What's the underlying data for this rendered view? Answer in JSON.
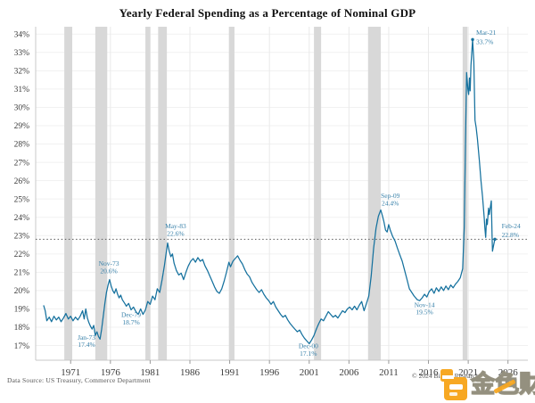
{
  "title": "Yearly Federal Spending as a Percentage of Nominal GDP",
  "footer": {
    "source": "Data Source: US Treasury, Commerce Department",
    "copyright": "© 2024 Bianco Research"
  },
  "watermark": {
    "text": "金色财经"
  },
  "colors": {
    "line": "#15719e",
    "annotation": "#3a82aa",
    "band": "#d8d8d8",
    "ref_line": "#5a5a5a",
    "h_grid": "#f1f1f1",
    "v_grid": "#e9e9e9",
    "axis_text": "#3a3a3a",
    "spine": "#c8c8c8",
    "tick": "#999999",
    "watermark_orange": "#f7a823"
  },
  "chart_data": {
    "type": "line",
    "title": "Yearly Federal Spending as a Percentage of Nominal GDP",
    "xlabel": "",
    "ylabel": "",
    "xlim": [
      1966.6,
      2028.5
    ],
    "ylim": [
      16.2,
      34.4
    ],
    "x_ticks": [
      1971,
      1976,
      1981,
      1986,
      1991,
      1996,
      2001,
      2006,
      2011,
      2016,
      2021,
      2026
    ],
    "y_ticks": [
      34,
      33,
      32,
      31,
      30,
      29,
      28,
      27,
      26,
      25,
      24,
      23,
      22,
      21,
      20,
      19,
      18,
      17
    ],
    "y_tick_suffix": "%",
    "grid": true,
    "legend": "none",
    "ref_line": 22.8,
    "recession_bands": [
      [
        1970.2,
        1971.2
      ],
      [
        1974.1,
        1975.6
      ],
      [
        1980.4,
        1981.0
      ],
      [
        1982.0,
        1983.1
      ],
      [
        1990.9,
        1991.6
      ],
      [
        2001.6,
        2002.5
      ],
      [
        2008.4,
        2010.0
      ],
      [
        2020.3,
        2020.9
      ]
    ],
    "series": [
      {
        "name": "Federal Spending as % of Nominal GDP",
        "points": [
          [
            1967.6,
            19.2
          ],
          [
            1967.8,
            18.9
          ],
          [
            1968.0,
            18.35
          ],
          [
            1968.3,
            18.55
          ],
          [
            1968.6,
            18.3
          ],
          [
            1968.9,
            18.6
          ],
          [
            1969.2,
            18.4
          ],
          [
            1969.5,
            18.55
          ],
          [
            1969.8,
            18.3
          ],
          [
            1970.1,
            18.5
          ],
          [
            1970.4,
            18.75
          ],
          [
            1970.7,
            18.45
          ],
          [
            1971.0,
            18.6
          ],
          [
            1971.3,
            18.35
          ],
          [
            1971.6,
            18.55
          ],
          [
            1971.9,
            18.4
          ],
          [
            1972.2,
            18.6
          ],
          [
            1972.5,
            18.9
          ],
          [
            1972.7,
            18.45
          ],
          [
            1972.9,
            19.0
          ],
          [
            1973.1,
            18.5
          ],
          [
            1973.3,
            18.25
          ],
          [
            1973.5,
            18.05
          ],
          [
            1973.7,
            17.9
          ],
          [
            1973.9,
            18.1
          ],
          [
            1974.1,
            17.55
          ],
          [
            1974.3,
            17.75
          ],
          [
            1974.5,
            17.5
          ],
          [
            1974.7,
            17.35
          ],
          [
            1974.9,
            17.9
          ],
          [
            1975.1,
            18.6
          ],
          [
            1975.3,
            19.3
          ],
          [
            1975.5,
            19.9
          ],
          [
            1975.7,
            20.3
          ],
          [
            1975.9,
            20.6
          ],
          [
            1976.1,
            20.25
          ],
          [
            1976.3,
            20.0
          ],
          [
            1976.5,
            19.85
          ],
          [
            1976.7,
            20.1
          ],
          [
            1976.9,
            19.8
          ],
          [
            1977.1,
            19.6
          ],
          [
            1977.3,
            19.75
          ],
          [
            1977.5,
            19.5
          ],
          [
            1977.8,
            19.3
          ],
          [
            1978.0,
            19.15
          ],
          [
            1978.3,
            19.3
          ],
          [
            1978.6,
            18.95
          ],
          [
            1978.9,
            19.1
          ],
          [
            1979.2,
            18.85
          ],
          [
            1979.5,
            18.7
          ],
          [
            1979.8,
            19.0
          ],
          [
            1980.1,
            18.7
          ],
          [
            1980.4,
            18.95
          ],
          [
            1980.7,
            19.4
          ],
          [
            1981.0,
            19.25
          ],
          [
            1981.3,
            19.7
          ],
          [
            1981.6,
            19.5
          ],
          [
            1981.9,
            20.1
          ],
          [
            1982.2,
            19.9
          ],
          [
            1982.5,
            20.6
          ],
          [
            1982.8,
            21.4
          ],
          [
            1983.0,
            22.0
          ],
          [
            1983.2,
            22.6
          ],
          [
            1983.4,
            22.15
          ],
          [
            1983.6,
            21.85
          ],
          [
            1983.8,
            22.0
          ],
          [
            1984.0,
            21.5
          ],
          [
            1984.3,
            21.1
          ],
          [
            1984.6,
            20.85
          ],
          [
            1984.9,
            20.95
          ],
          [
            1985.2,
            20.6
          ],
          [
            1985.5,
            21.0
          ],
          [
            1985.8,
            21.35
          ],
          [
            1986.1,
            21.6
          ],
          [
            1986.4,
            21.75
          ],
          [
            1986.7,
            21.55
          ],
          [
            1987.0,
            21.8
          ],
          [
            1987.3,
            21.6
          ],
          [
            1987.6,
            21.7
          ],
          [
            1987.9,
            21.35
          ],
          [
            1988.2,
            21.1
          ],
          [
            1988.5,
            20.8
          ],
          [
            1988.8,
            20.5
          ],
          [
            1989.1,
            20.2
          ],
          [
            1989.4,
            19.95
          ],
          [
            1989.7,
            19.85
          ],
          [
            1990.0,
            20.1
          ],
          [
            1990.3,
            20.5
          ],
          [
            1990.6,
            21.0
          ],
          [
            1990.9,
            21.55
          ],
          [
            1991.1,
            21.3
          ],
          [
            1991.4,
            21.6
          ],
          [
            1991.7,
            21.75
          ],
          [
            1992.0,
            21.9
          ],
          [
            1992.3,
            21.65
          ],
          [
            1992.6,
            21.45
          ],
          [
            1992.9,
            21.15
          ],
          [
            1993.2,
            20.9
          ],
          [
            1993.5,
            20.75
          ],
          [
            1993.8,
            20.45
          ],
          [
            1994.1,
            20.25
          ],
          [
            1994.4,
            20.05
          ],
          [
            1994.7,
            19.9
          ],
          [
            1995.0,
            20.05
          ],
          [
            1995.3,
            19.8
          ],
          [
            1995.6,
            19.6
          ],
          [
            1995.9,
            19.45
          ],
          [
            1996.2,
            19.25
          ],
          [
            1996.5,
            19.4
          ],
          [
            1996.8,
            19.1
          ],
          [
            1997.1,
            18.9
          ],
          [
            1997.4,
            18.7
          ],
          [
            1997.7,
            18.55
          ],
          [
            1998.0,
            18.65
          ],
          [
            1998.3,
            18.4
          ],
          [
            1998.6,
            18.2
          ],
          [
            1998.9,
            18.05
          ],
          [
            1999.2,
            17.9
          ],
          [
            1999.5,
            17.75
          ],
          [
            1999.8,
            17.85
          ],
          [
            2000.1,
            17.6
          ],
          [
            2000.4,
            17.4
          ],
          [
            2000.7,
            17.25
          ],
          [
            2001.0,
            17.1
          ],
          [
            2001.3,
            17.3
          ],
          [
            2001.6,
            17.55
          ],
          [
            2001.9,
            17.9
          ],
          [
            2002.2,
            18.2
          ],
          [
            2002.5,
            18.45
          ],
          [
            2002.8,
            18.35
          ],
          [
            2003.1,
            18.6
          ],
          [
            2003.4,
            18.85
          ],
          [
            2003.7,
            18.7
          ],
          [
            2004.0,
            18.55
          ],
          [
            2004.3,
            18.65
          ],
          [
            2004.6,
            18.5
          ],
          [
            2004.9,
            18.7
          ],
          [
            2005.2,
            18.9
          ],
          [
            2005.5,
            18.8
          ],
          [
            2005.8,
            19.0
          ],
          [
            2006.1,
            19.1
          ],
          [
            2006.4,
            18.95
          ],
          [
            2006.7,
            19.15
          ],
          [
            2007.0,
            18.95
          ],
          [
            2007.3,
            19.2
          ],
          [
            2007.6,
            19.4
          ],
          [
            2007.9,
            18.9
          ],
          [
            2008.2,
            19.3
          ],
          [
            2008.5,
            19.7
          ],
          [
            2008.8,
            20.8
          ],
          [
            2009.1,
            22.3
          ],
          [
            2009.4,
            23.4
          ],
          [
            2009.7,
            24.05
          ],
          [
            2010.0,
            24.4
          ],
          [
            2010.2,
            24.1
          ],
          [
            2010.4,
            23.75
          ],
          [
            2010.6,
            23.3
          ],
          [
            2010.8,
            23.2
          ],
          [
            2011.0,
            23.6
          ],
          [
            2011.2,
            23.3
          ],
          [
            2011.5,
            22.95
          ],
          [
            2011.8,
            22.7
          ],
          [
            2012.1,
            22.3
          ],
          [
            2012.4,
            21.95
          ],
          [
            2012.7,
            21.6
          ],
          [
            2013.0,
            21.1
          ],
          [
            2013.3,
            20.6
          ],
          [
            2013.6,
            20.1
          ],
          [
            2013.9,
            19.9
          ],
          [
            2014.2,
            19.7
          ],
          [
            2014.6,
            19.5
          ],
          [
            2014.9,
            19.45
          ],
          [
            2015.2,
            19.6
          ],
          [
            2015.5,
            19.8
          ],
          [
            2015.8,
            19.65
          ],
          [
            2016.1,
            19.95
          ],
          [
            2016.4,
            20.1
          ],
          [
            2016.7,
            19.85
          ],
          [
            2017.0,
            20.15
          ],
          [
            2017.3,
            19.95
          ],
          [
            2017.6,
            20.2
          ],
          [
            2017.9,
            20.0
          ],
          [
            2018.2,
            20.25
          ],
          [
            2018.5,
            20.05
          ],
          [
            2018.8,
            20.3
          ],
          [
            2019.1,
            20.15
          ],
          [
            2019.4,
            20.35
          ],
          [
            2019.7,
            20.5
          ],
          [
            2020.0,
            20.7
          ],
          [
            2020.3,
            21.2
          ],
          [
            2020.5,
            23.5
          ],
          [
            2020.65,
            28.0
          ],
          [
            2020.8,
            31.9
          ],
          [
            2020.95,
            31.0
          ],
          [
            2021.05,
            30.7
          ],
          [
            2021.15,
            31.6
          ],
          [
            2021.25,
            30.9
          ],
          [
            2021.35,
            32.3
          ],
          [
            2021.45,
            33.0
          ],
          [
            2021.55,
            33.7
          ],
          [
            2021.7,
            32.5
          ],
          [
            2021.85,
            29.3
          ],
          [
            2022.0,
            28.9
          ],
          [
            2022.15,
            28.3
          ],
          [
            2022.4,
            27.1
          ],
          [
            2022.6,
            26.0
          ],
          [
            2022.8,
            25.1
          ],
          [
            2023.0,
            24.0
          ],
          [
            2023.1,
            23.4
          ],
          [
            2023.2,
            22.9
          ],
          [
            2023.3,
            23.9
          ],
          [
            2023.4,
            23.6
          ],
          [
            2023.55,
            24.5
          ],
          [
            2023.65,
            24.15
          ],
          [
            2023.8,
            24.6
          ],
          [
            2023.9,
            24.9
          ],
          [
            2024.0,
            22.9
          ],
          [
            2024.05,
            22.15
          ],
          [
            2024.2,
            22.5
          ],
          [
            2024.35,
            22.8
          ]
        ]
      }
    ],
    "markers": [
      [
        2021.55,
        33.7
      ],
      [
        2024.35,
        22.8
      ]
    ],
    "annotations": [
      {
        "line1": "Jan-73",
        "line2": "17.4%",
        "x": 1973.0,
        "y1": 17.32,
        "y2": 16.93,
        "anchor": "middle"
      },
      {
        "line1": "Nov-73",
        "line2": "20.6%",
        "x": 1975.8,
        "y1": 21.35,
        "y2": 20.95,
        "anchor": "middle"
      },
      {
        "line1": "Dec-79",
        "line2": "18.7%",
        "x": 1978.6,
        "y1": 18.55,
        "y2": 18.15,
        "anchor": "middle"
      },
      {
        "line1": "May-83",
        "line2": "22.6%",
        "x": 1984.2,
        "y1": 23.4,
        "y2": 23.0,
        "anchor": "middle"
      },
      {
        "line1": "Dec-00",
        "line2": "17.1%",
        "x": 2000.9,
        "y1": 16.85,
        "y2": 16.45,
        "anchor": "middle"
      },
      {
        "line1": "Sep-09",
        "line2": "24.4%",
        "x": 2011.2,
        "y1": 25.05,
        "y2": 24.65,
        "anchor": "middle"
      },
      {
        "line1": "Nov-14",
        "line2": "19.5%",
        "x": 2015.5,
        "y1": 19.1,
        "y2": 18.7,
        "anchor": "middle"
      },
      {
        "line1": "Mar-21",
        "line2": "33.7%",
        "x": 2022.0,
        "y1": 33.95,
        "y2": 33.45,
        "anchor": "start"
      },
      {
        "line1": "Feb-24",
        "line2": "22.8%",
        "x": 2025.2,
        "y1": 23.4,
        "y2": 22.92,
        "anchor": "start"
      }
    ]
  }
}
